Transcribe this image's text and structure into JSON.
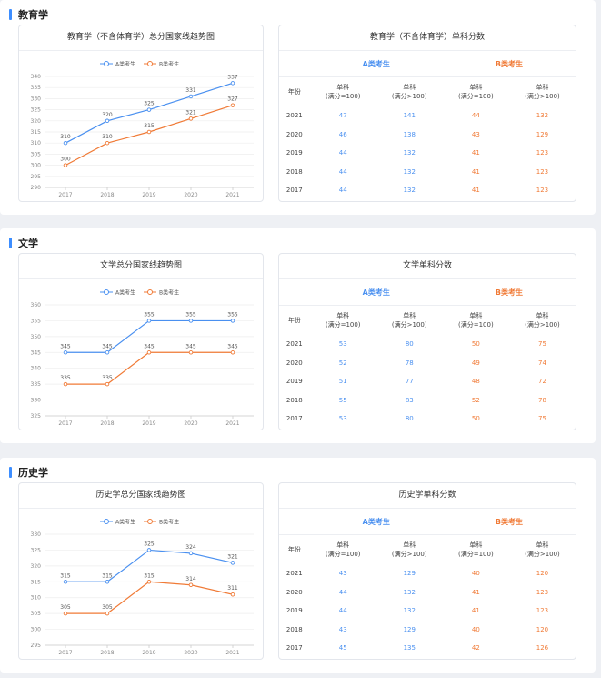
{
  "colors": {
    "a": "#4a90f0",
    "b": "#f07a36",
    "accent": "#3d8eff"
  },
  "sections": [
    {
      "title": "教育学",
      "chart_title": "教育学（不含体育学）总分国家线趋势图",
      "table_title": "教育学（不含体育学）单科分数",
      "chart_data": {
        "type": "line",
        "x": [
          "2017",
          "2018",
          "2019",
          "2020",
          "2021"
        ],
        "series": [
          {
            "name": "A类考生",
            "values": [
              310,
              320,
              325,
              331,
              337
            ]
          },
          {
            "name": "B类考生",
            "values": [
              300,
              310,
              315,
              321,
              327
            ]
          }
        ],
        "yticks": [
          290,
          295,
          300,
          305,
          310,
          315,
          320,
          325,
          330,
          335,
          340
        ],
        "ylim": [
          290,
          340
        ],
        "legend": "top-center"
      },
      "table": {
        "group_a": "A类考生",
        "group_b": "B类考生",
        "year_header": "年份",
        "col1": "单科",
        "col1_sub": "(满分=100)",
        "col2": "单科",
        "col2_sub": "(满分>100)",
        "rows": [
          [
            "2021",
            "47",
            "141",
            "44",
            "132"
          ],
          [
            "2020",
            "46",
            "138",
            "43",
            "129"
          ],
          [
            "2019",
            "44",
            "132",
            "41",
            "123"
          ],
          [
            "2018",
            "44",
            "132",
            "41",
            "123"
          ],
          [
            "2017",
            "44",
            "132",
            "41",
            "123"
          ]
        ]
      }
    },
    {
      "title": "文学",
      "chart_title": "文学总分国家线趋势图",
      "table_title": "文学单科分数",
      "chart_data": {
        "type": "line",
        "x": [
          "2017",
          "2018",
          "2019",
          "2020",
          "2021"
        ],
        "series": [
          {
            "name": "A类考生",
            "values": [
              345,
              345,
              355,
              355,
              355
            ]
          },
          {
            "name": "B类考生",
            "values": [
              335,
              335,
              345,
              345,
              345
            ]
          }
        ],
        "yticks": [
          325,
          330,
          335,
          340,
          345,
          350,
          355,
          360
        ],
        "ylim": [
          325,
          360
        ],
        "legend": "top-center"
      },
      "table": {
        "group_a": "A类考生",
        "group_b": "B类考生",
        "year_header": "年份",
        "col1": "单科",
        "col1_sub": "(满分=100)",
        "col2": "单科",
        "col2_sub": "(满分>100)",
        "rows": [
          [
            "2021",
            "53",
            "80",
            "50",
            "75"
          ],
          [
            "2020",
            "52",
            "78",
            "49",
            "74"
          ],
          [
            "2019",
            "51",
            "77",
            "48",
            "72"
          ],
          [
            "2018",
            "55",
            "83",
            "52",
            "78"
          ],
          [
            "2017",
            "53",
            "80",
            "50",
            "75"
          ]
        ]
      }
    },
    {
      "title": "历史学",
      "chart_title": "历史学总分国家线趋势图",
      "table_title": "历史学单科分数",
      "chart_data": {
        "type": "line",
        "x": [
          "2017",
          "2018",
          "2019",
          "2020",
          "2021"
        ],
        "series": [
          {
            "name": "A类考生",
            "values": [
              315,
              315,
              325,
              324,
              321
            ]
          },
          {
            "name": "B类考生",
            "values": [
              305,
              305,
              315,
              314,
              311
            ]
          }
        ],
        "yticks": [
          295,
          300,
          305,
          310,
          315,
          320,
          325,
          330
        ],
        "ylim": [
          295,
          330
        ],
        "legend": "top-center"
      },
      "table": {
        "group_a": "A类考生",
        "group_b": "B类考生",
        "year_header": "年份",
        "col1": "单科",
        "col1_sub": "(满分=100)",
        "col2": "单科",
        "col2_sub": "(满分>100)",
        "rows": [
          [
            "2021",
            "43",
            "129",
            "40",
            "120"
          ],
          [
            "2020",
            "44",
            "132",
            "41",
            "123"
          ],
          [
            "2019",
            "44",
            "132",
            "41",
            "123"
          ],
          [
            "2018",
            "43",
            "129",
            "40",
            "120"
          ],
          [
            "2017",
            "45",
            "135",
            "42",
            "126"
          ]
        ]
      }
    }
  ]
}
